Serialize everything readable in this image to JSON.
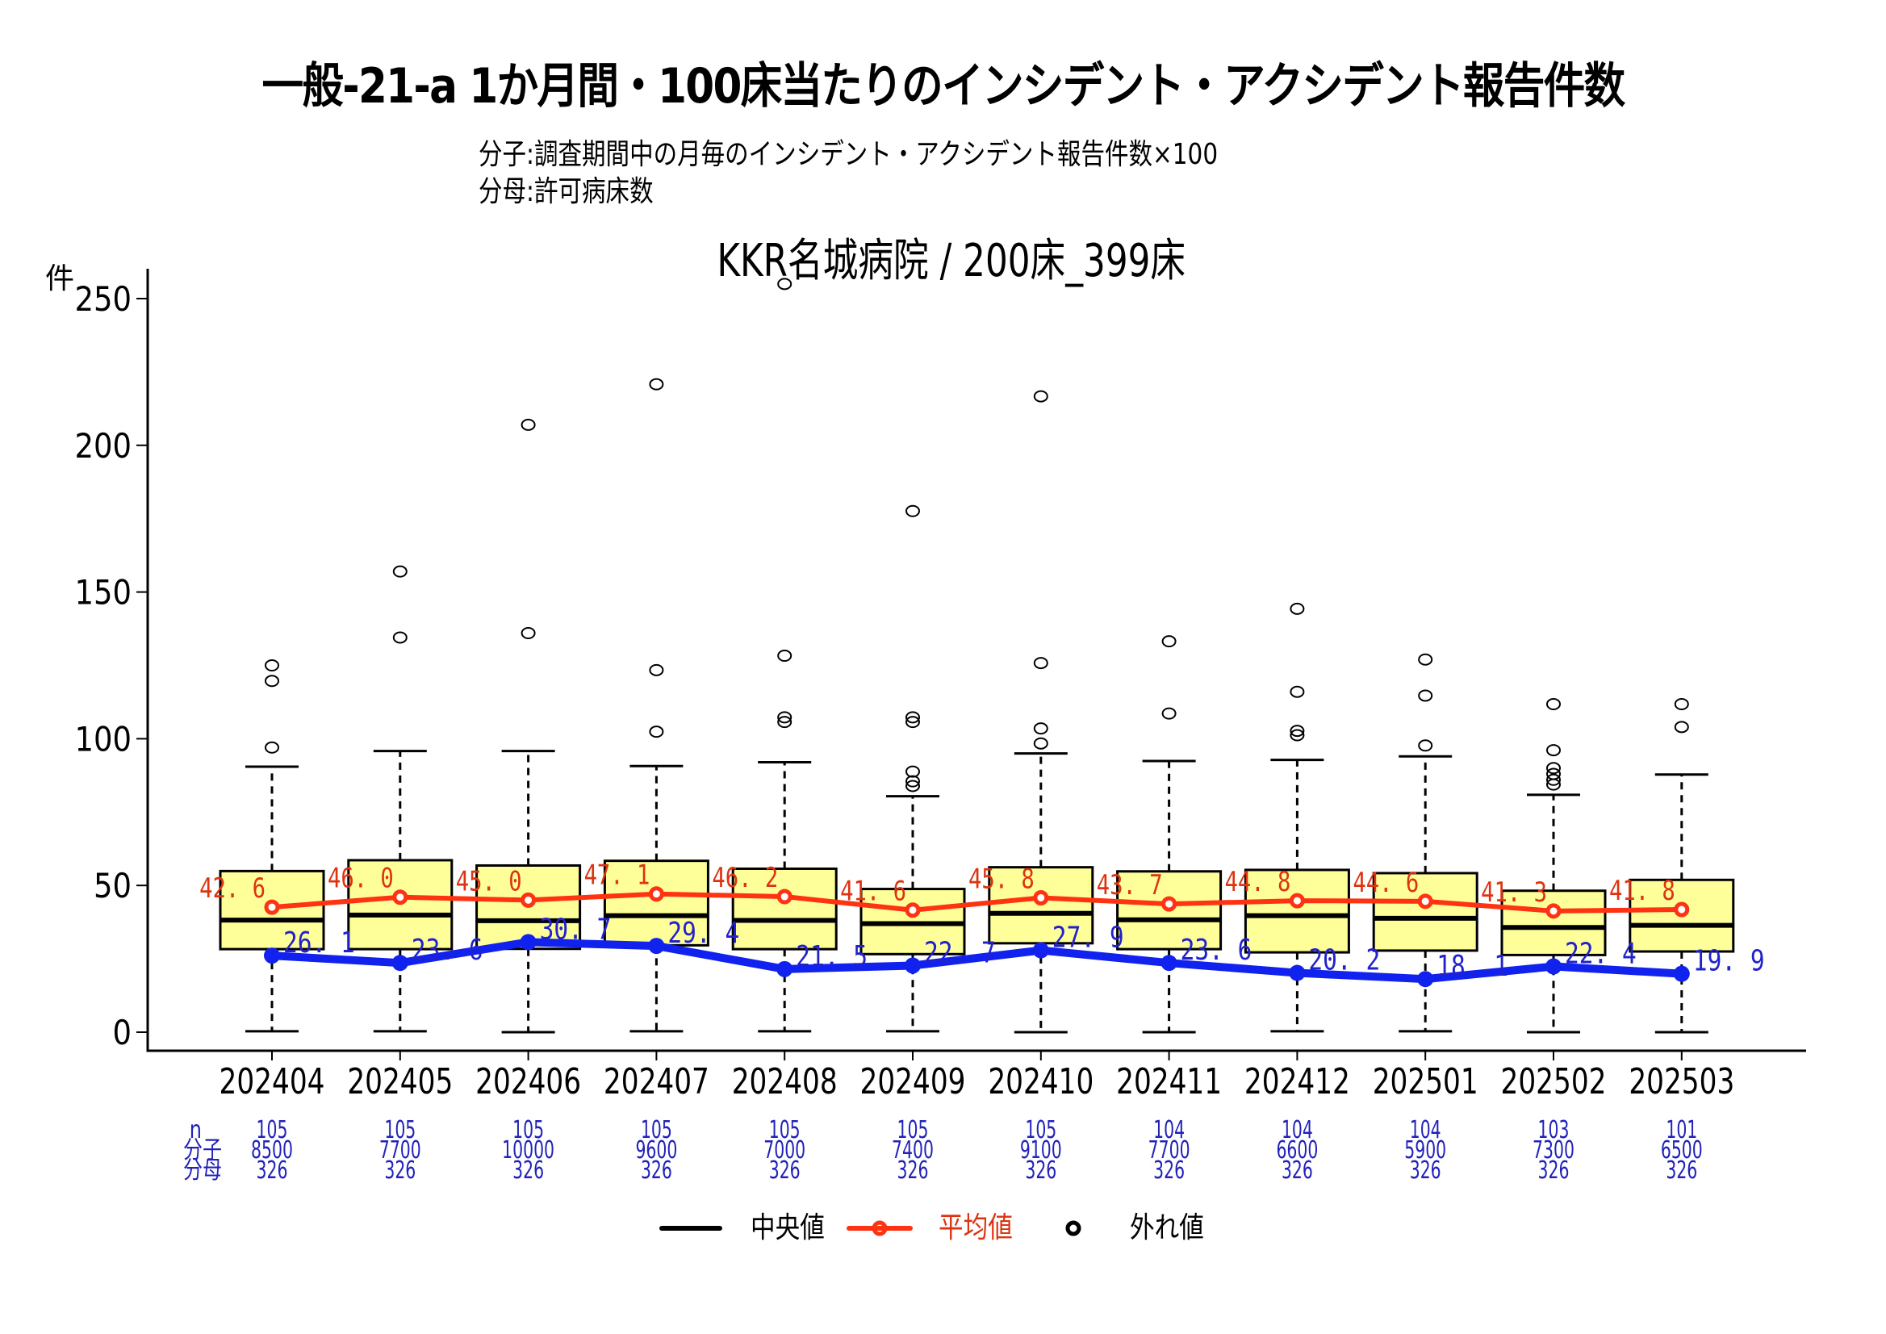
{
  "header": {
    "title": "一般-21-a 1か月間・100床当たりのインシデント・アクシデント報告件数",
    "numerator": "分子:調査期間中の月毎のインシデント・アクシデント報告件数×100",
    "denominator": "分母:許可病床数",
    "plot_title": "KKR名城病院 / 200床_399床"
  },
  "colors": {
    "box_fill": "#ffff99",
    "mean": "#ff3311",
    "mean_text": "#dd3311",
    "hospital": "#1122ee",
    "hospital_text": "#2222cc",
    "table_text": "#2222bb"
  },
  "table": {
    "row_labels": [
      "n",
      "分子",
      "分母"
    ]
  },
  "legend": {
    "median": "中央値",
    "mean": "平均値",
    "outlier": "外れ値"
  },
  "chart_data": {
    "type": "boxplot",
    "title": "KKR名城病院 / 200床_399床",
    "ylabel": "件",
    "xlabel": "",
    "ylim": [
      -10,
      260
    ],
    "yticks": [
      0,
      50,
      100,
      150,
      200,
      250
    ],
    "grid": false,
    "legend_position": "bottom",
    "categories": [
      "202404",
      "202405",
      "202406",
      "202407",
      "202408",
      "202409",
      "202410",
      "202411",
      "202412",
      "202501",
      "202502",
      "202503"
    ],
    "boxes": [
      {
        "low": 0.3,
        "q1": 28.3,
        "median": 38.2,
        "q3": 54.9,
        "high": 90.5,
        "outliers": [
          125.0,
          119.7,
          97.0
        ]
      },
      {
        "low": 0.3,
        "q1": 28.3,
        "median": 39.9,
        "q3": 58.6,
        "high": 95.8,
        "outliers": [
          157.0,
          134.5
        ]
      },
      {
        "low": 0.0,
        "q1": 28.4,
        "median": 38.0,
        "q3": 56.8,
        "high": 95.8,
        "outliers": [
          207.0,
          136.0
        ]
      },
      {
        "low": 0.3,
        "q1": 29.6,
        "median": 39.7,
        "q3": 58.4,
        "high": 90.7,
        "outliers": [
          220.8,
          123.4,
          102.4
        ]
      },
      {
        "low": 0.3,
        "q1": 28.3,
        "median": 38.1,
        "q3": 55.7,
        "high": 92.0,
        "outliers": [
          255.0,
          128.3,
          107.3,
          105.7
        ]
      },
      {
        "low": 0.3,
        "q1": 26.6,
        "median": 37.0,
        "q3": 48.8,
        "high": 80.4,
        "outliers": [
          177.6,
          107.3,
          105.7,
          88.8,
          85.5,
          83.9
        ]
      },
      {
        "low": 0.0,
        "q1": 30.3,
        "median": 40.5,
        "q3": 56.2,
        "high": 95.0,
        "outliers": [
          216.7,
          125.8,
          103.5,
          98.4
        ]
      },
      {
        "low": 0.0,
        "q1": 28.3,
        "median": 38.3,
        "q3": 54.8,
        "high": 92.4,
        "outliers": [
          133.2,
          108.6
        ]
      },
      {
        "low": 0.3,
        "q1": 27.2,
        "median": 39.7,
        "q3": 55.3,
        "high": 92.8,
        "outliers": [
          144.3,
          116.0,
          102.7,
          101.2
        ]
      },
      {
        "low": 0.3,
        "q1": 27.8,
        "median": 38.8,
        "q3": 54.2,
        "high": 94.0,
        "outliers": [
          127.0,
          114.7,
          97.7
        ]
      },
      {
        "low": 0.0,
        "q1": 26.3,
        "median": 35.7,
        "q3": 48.2,
        "high": 80.9,
        "outliers": [
          111.8,
          96.1,
          90.0,
          88.0,
          86.0,
          84.4
        ]
      },
      {
        "low": 0.0,
        "q1": 27.5,
        "median": 36.4,
        "q3": 51.9,
        "high": 87.8,
        "outliers": [
          111.8,
          104.0
        ]
      }
    ],
    "series": [
      {
        "name": "平均値",
        "values": [
          42.6,
          46.0,
          45.0,
          47.1,
          46.2,
          41.6,
          45.8,
          43.7,
          44.8,
          44.6,
          41.3,
          41.8
        ],
        "labels": [
          "42.6",
          "46.0",
          "45.0",
          "47.1",
          "46.2",
          "41.6",
          "45.8",
          "43.7",
          "44.8",
          "44.6",
          "41.3",
          "41.8"
        ]
      },
      {
        "name": "KKR名城病院",
        "values": [
          26.1,
          23.6,
          30.7,
          29.4,
          21.5,
          22.7,
          27.9,
          23.6,
          20.2,
          18.1,
          22.4,
          19.9
        ],
        "labels": [
          "26.1",
          "23.6",
          "30.7",
          "29.4",
          "21.5",
          "22.7",
          "27.9",
          "23.6",
          "20.2",
          "18.1",
          "22.4",
          "19.9"
        ]
      }
    ],
    "table": {
      "n": [
        "105",
        "105",
        "105",
        "105",
        "105",
        "105",
        "105",
        "104",
        "104",
        "104",
        "103",
        "101"
      ],
      "numerator": [
        "8500",
        "7700",
        "10000",
        "9600",
        "7000",
        "7400",
        "9100",
        "7700",
        "6600",
        "5900",
        "7300",
        "6500"
      ],
      "denominator": [
        "326",
        "326",
        "326",
        "326",
        "326",
        "326",
        "326",
        "326",
        "326",
        "326",
        "326",
        "326"
      ]
    }
  }
}
